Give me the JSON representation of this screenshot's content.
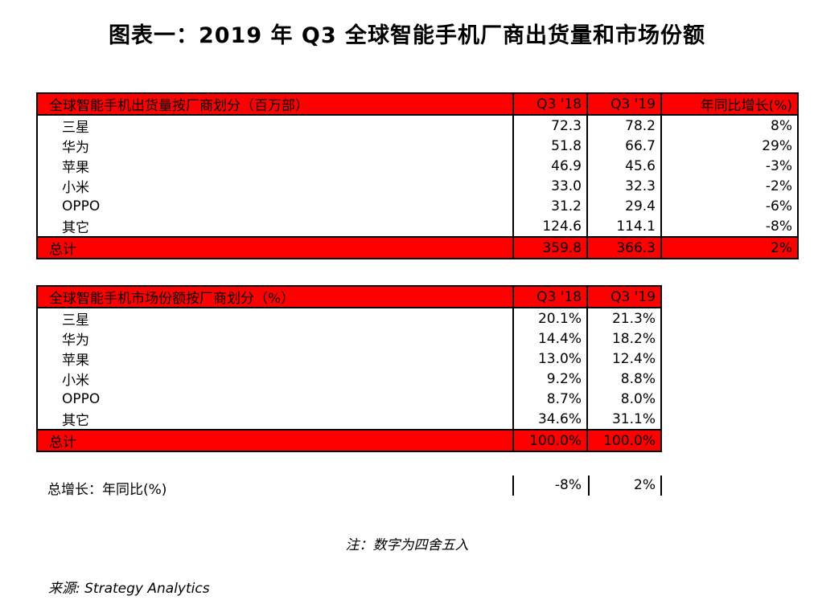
{
  "title": "图表一：2019 年 Q3 全球智能手机厂商出货量和市场份额",
  "shipments_table": {
    "header": [
      "全球智能手机出货量按厂商划分（百万部）",
      "Q3 '18",
      "Q3 '19",
      "年同比增长(%)"
    ],
    "rows": [
      [
        "三星",
        "72.3",
        "78.2",
        "8%"
      ],
      [
        "华为",
        "51.8",
        "66.7",
        "29%"
      ],
      [
        "苹果",
        "46.9",
        "45.6",
        "-3%"
      ],
      [
        "小米",
        "33.0",
        "32.3",
        "-2%"
      ],
      [
        "OPPO",
        "31.2",
        "29.4",
        "-6%"
      ],
      [
        "其它",
        "124.6",
        "114.1",
        "-8%"
      ]
    ],
    "total": [
      "总计",
      "359.8",
      "366.3",
      "2%"
    ]
  },
  "share_table": {
    "header": [
      "全球智能手机市场份额按厂商划分（%）",
      "Q3 '18",
      "Q3 '19"
    ],
    "rows": [
      [
        "三星",
        "20.1%",
        "21.3%"
      ],
      [
        "华为",
        "14.4%",
        "18.2%"
      ],
      [
        "苹果",
        "13.0%",
        "12.4%"
      ],
      [
        "小米",
        "9.2%",
        "8.8%"
      ],
      [
        "OPPO",
        "8.7%",
        "8.0%"
      ],
      [
        "其它",
        "34.6%",
        "31.1%"
      ]
    ],
    "total": [
      "总计",
      "100.0%",
      "100.0%"
    ]
  },
  "growth": {
    "label": "总增长：年同比(%)",
    "q3_18": "-8%",
    "q3_19": "2%"
  },
  "note": "注：数字为四舍五入",
  "source": "来源: Strategy Analytics",
  "colors": {
    "header_fill": "#ff0000",
    "border": "#000000"
  }
}
